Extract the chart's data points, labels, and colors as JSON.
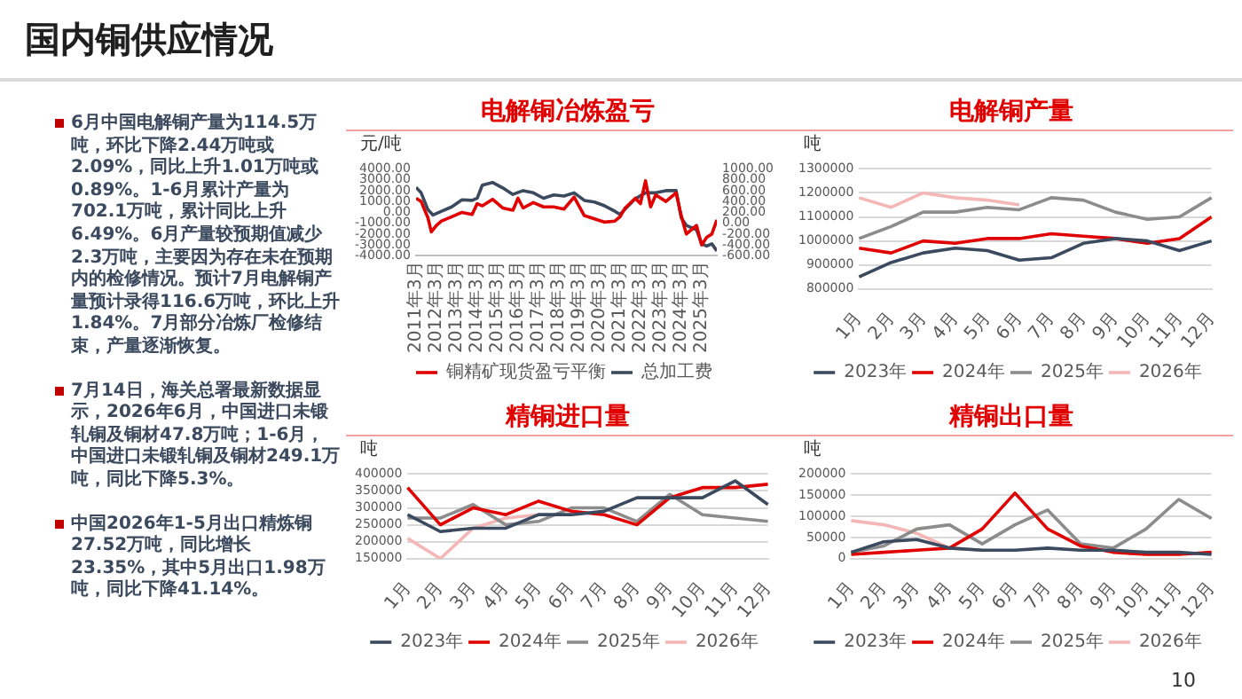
{
  "chart_data": [
    {
      "type": "other",
      "title": "国内铜供应情况",
      "annotations": [
        "6月中国电解铜产量为114.5万吨，环比下降2.44万吨或2.09%，同比上升1.01万吨或0.89%。1-6月累计产量为702.1万吨，累计同比上升6.49%。6月产量较预期值减少2.3万吨，主要因为存在未在预期内的检修情况。预计7月电解铜产量预计录得116.6万吨，环比上升1.84%。7月部分冶炼厂检修结束，产量逐渐恢复。",
        "7月14日，海关总署最新数据显示，2026年6月，中国进口未锻轧铜及铜材47.8万吨；1-6月，中国进口未锻轧铜及铜材249.1万吨，同比下降5.3%。",
        "中国2026年1-5月出口精炼铜27.52万吨，同比增长23.35%，其中5月出口1.98万吨，同比下降41.14%。",
        "10"
      ]
    },
    {
      "type": "line",
      "title": "电解铜冶炼盈亏",
      "ylabel": "元/吨",
      "xlim": [
        "2011-03",
        "2025-12"
      ],
      "xticks": [
        {
          "value": "2011-03",
          "label": "2011年3月"
        },
        {
          "value": "2012-03",
          "label": "2012年3月"
        },
        {
          "value": "2013-03",
          "label": "2013年3月"
        },
        {
          "value": "2014-03",
          "label": "2014年3月"
        },
        {
          "value": "2015-03",
          "label": "2015年3月"
        },
        {
          "value": "2016-03",
          "label": "2016年3月"
        },
        {
          "value": "2017-03",
          "label": "2017年3月"
        },
        {
          "value": "2018-03",
          "label": "2018年3月"
        },
        {
          "value": "2019-03",
          "label": "2019年3月"
        },
        {
          "value": "2020-03",
          "label": "2020年3月"
        },
        {
          "value": "2021-03",
          "label": "2021年3月"
        },
        {
          "value": "2022-03",
          "label": "2022年3月"
        },
        {
          "value": "2023-03",
          "label": "2023年3月"
        },
        {
          "value": "2024-03",
          "label": "2024年3月"
        },
        {
          "value": "2025-03",
          "label": "2025年3月"
        }
      ],
      "ylim": [
        -4000,
        4000
      ],
      "yticks": [
        {
          "value": -4000,
          "label": "-4000.00"
        },
        {
          "value": -3000,
          "label": "-3000.00"
        },
        {
          "value": -2000,
          "label": "-2000.00"
        },
        {
          "value": -1000,
          "label": "-1000.00"
        },
        {
          "value": 0,
          "label": "0.00"
        },
        {
          "value": 1000,
          "label": "1000.00"
        },
        {
          "value": 2000,
          "label": "2000.00"
        },
        {
          "value": 3000,
          "label": "3000.00"
        },
        {
          "value": 4000,
          "label": "4000.00"
        }
      ],
      "y2lim": [
        -600,
        1000
      ],
      "y2ticks": [
        {
          "value": -600,
          "label": "-600.00"
        },
        {
          "value": -400,
          "label": "-400.00"
        },
        {
          "value": -200,
          "label": "-200.00"
        },
        {
          "value": 0,
          "label": "0.00"
        },
        {
          "value": 200,
          "label": "200.00"
        },
        {
          "value": 400,
          "label": "400.00"
        },
        {
          "value": 600,
          "label": "600.00"
        },
        {
          "value": 800,
          "label": "800.00"
        },
        {
          "value": 1000,
          "label": "1000.00"
        }
      ],
      "grid": false,
      "legend": "bottom",
      "marker": "none",
      "series": [
        {
          "name": "铜精矿现货盈亏平衡",
          "color": "#e00000",
          "x": [
            "2011-03",
            "2011-06",
            "2011-10",
            "2011-12",
            "2012-03",
            "2012-06",
            "2012-12",
            "2013-06",
            "2013-12",
            "2014-03",
            "2014-06",
            "2014-12",
            "2015-06",
            "2015-12",
            "2016-03",
            "2016-06",
            "2016-12",
            "2017-06",
            "2017-12",
            "2018-06",
            "2018-12",
            "2019-06",
            "2019-12",
            "2020-06",
            "2020-12",
            "2021-03",
            "2021-06",
            "2021-12",
            "2022-03",
            "2022-06",
            "2022-09",
            "2022-12",
            "2023-06",
            "2023-12",
            "2024-03",
            "2024-06",
            "2024-12",
            "2025-03",
            "2025-06",
            "2025-09",
            "2025-12"
          ],
          "values": [
            1300,
            1000,
            -500,
            -1800,
            -1200,
            -800,
            -400,
            0,
            -200,
            800,
            600,
            1200,
            400,
            200,
            1300,
            400,
            900,
            500,
            500,
            300,
            1400,
            -300,
            -600,
            -900,
            -800,
            -400,
            400,
            1300,
            800,
            2900,
            500,
            1600,
            1000,
            1800,
            -300,
            -2000,
            -1200,
            -3000,
            -2300,
            -2000,
            -700
          ]
        },
        {
          "name": "总加工费",
          "color": "#3b4a5e",
          "axis": "y2",
          "x": [
            "2011-03",
            "2011-06",
            "2011-10",
            "2012-01",
            "2012-06",
            "2012-12",
            "2013-06",
            "2013-12",
            "2014-03",
            "2014-06",
            "2014-12",
            "2015-06",
            "2015-12",
            "2016-06",
            "2016-12",
            "2017-06",
            "2017-12",
            "2018-06",
            "2018-12",
            "2019-06",
            "2019-12",
            "2020-06",
            "2020-12",
            "2021-03",
            "2021-06",
            "2021-12",
            "2022-06",
            "2022-12",
            "2023-06",
            "2023-12",
            "2024-03",
            "2024-06",
            "2024-12",
            "2025-03",
            "2025-06",
            "2025-09",
            "2025-12"
          ],
          "values": [
            660,
            560,
            250,
            150,
            220,
            300,
            430,
            420,
            460,
            700,
            750,
            650,
            530,
            600,
            560,
            460,
            520,
            500,
            560,
            420,
            390,
            320,
            220,
            160,
            260,
            450,
            560,
            560,
            600,
            600,
            100,
            -40,
            -120,
            -380,
            -420,
            -380,
            -510
          ]
        }
      ]
    },
    {
      "type": "line",
      "title": "电解铜产量",
      "ylabel": "吨",
      "categories": [
        "1月",
        "2月",
        "3月",
        "4月",
        "5月",
        "6月",
        "7月",
        "8月",
        "9月",
        "10月",
        "11月",
        "12月"
      ],
      "ylim": [
        800000,
        1300000
      ],
      "yticks": [
        800000,
        900000,
        1000000,
        1100000,
        1200000,
        1300000
      ],
      "grid": "y",
      "legend": "bottom",
      "marker": "none",
      "series": [
        {
          "name": "2023年",
          "color": "#3b4a5e",
          "values": [
            850000,
            910000,
            950000,
            970000,
            960000,
            920000,
            930000,
            990000,
            1010000,
            1000000,
            960000,
            1000000
          ]
        },
        {
          "name": "2024年",
          "color": "#e00000",
          "values": [
            970000,
            950000,
            1000000,
            990000,
            1010000,
            1010000,
            1030000,
            1020000,
            1010000,
            990000,
            1010000,
            1100000
          ]
        },
        {
          "name": "2025年",
          "color": "#8c8c8c",
          "values": [
            1010000,
            1060000,
            1120000,
            1120000,
            1140000,
            1130000,
            1180000,
            1170000,
            1120000,
            1090000,
            1100000,
            1180000
          ]
        },
        {
          "name": "2026年",
          "color": "#f4b6b6",
          "values": [
            1180000,
            1140000,
            1200000,
            1180000,
            1170000,
            1150000,
            null,
            null,
            null,
            null,
            null,
            null
          ]
        }
      ]
    },
    {
      "type": "line",
      "title": "精铜进口量",
      "ylabel": "吨",
      "categories": [
        "1月",
        "2月",
        "3月",
        "4月",
        "5月",
        "6月",
        "7月",
        "8月",
        "9月",
        "10月",
        "11月",
        "12月"
      ],
      "ylim": [
        150000,
        400000
      ],
      "yticks": [
        150000,
        200000,
        250000,
        300000,
        350000,
        400000
      ],
      "grid": "y",
      "legend": "bottom",
      "marker": "none",
      "series": [
        {
          "name": "2023年",
          "color": "#3b4a5e",
          "values": [
            280000,
            230000,
            240000,
            240000,
            280000,
            280000,
            290000,
            330000,
            330000,
            330000,
            380000,
            310000
          ]
        },
        {
          "name": "2024年",
          "color": "#e00000",
          "values": [
            360000,
            250000,
            300000,
            280000,
            320000,
            290000,
            280000,
            250000,
            330000,
            360000,
            360000,
            370000
          ]
        },
        {
          "name": "2025年",
          "color": "#8c8c8c",
          "values": [
            270000,
            270000,
            310000,
            250000,
            260000,
            300000,
            300000,
            260000,
            340000,
            280000,
            270000,
            260000
          ]
        },
        {
          "name": "2026年",
          "color": "#f4b6b6",
          "values": [
            210000,
            150000,
            240000,
            270000,
            280000,
            null,
            null,
            null,
            null,
            null,
            null,
            null
          ]
        }
      ]
    },
    {
      "type": "line",
      "title": "精铜出口量",
      "ylabel": "吨",
      "categories": [
        "1月",
        "2月",
        "3月",
        "4月",
        "5月",
        "6月",
        "7月",
        "8月",
        "9月",
        "10月",
        "11月",
        "12月"
      ],
      "ylim": [
        0,
        200000
      ],
      "yticks": [
        0,
        50000,
        100000,
        150000,
        200000
      ],
      "grid": "y",
      "legend": "bottom",
      "marker": "none",
      "series": [
        {
          "name": "2023年",
          "color": "#3b4a5e",
          "values": [
            15000,
            40000,
            45000,
            25000,
            20000,
            20000,
            25000,
            20000,
            20000,
            15000,
            15000,
            10000
          ]
        },
        {
          "name": "2024年",
          "color": "#e00000",
          "values": [
            10000,
            15000,
            20000,
            25000,
            70000,
            155000,
            70000,
            30000,
            15000,
            10000,
            10000,
            15000
          ]
        },
        {
          "name": "2025年",
          "color": "#8c8c8c",
          "values": [
            15000,
            30000,
            70000,
            80000,
            35000,
            80000,
            115000,
            35000,
            25000,
            70000,
            140000,
            95000
          ]
        },
        {
          "name": "2026年",
          "color": "#f4b6b6",
          "values": [
            90000,
            80000,
            60000,
            25000,
            20000,
            null,
            null,
            null,
            null,
            null,
            null,
            null
          ]
        }
      ]
    }
  ]
}
